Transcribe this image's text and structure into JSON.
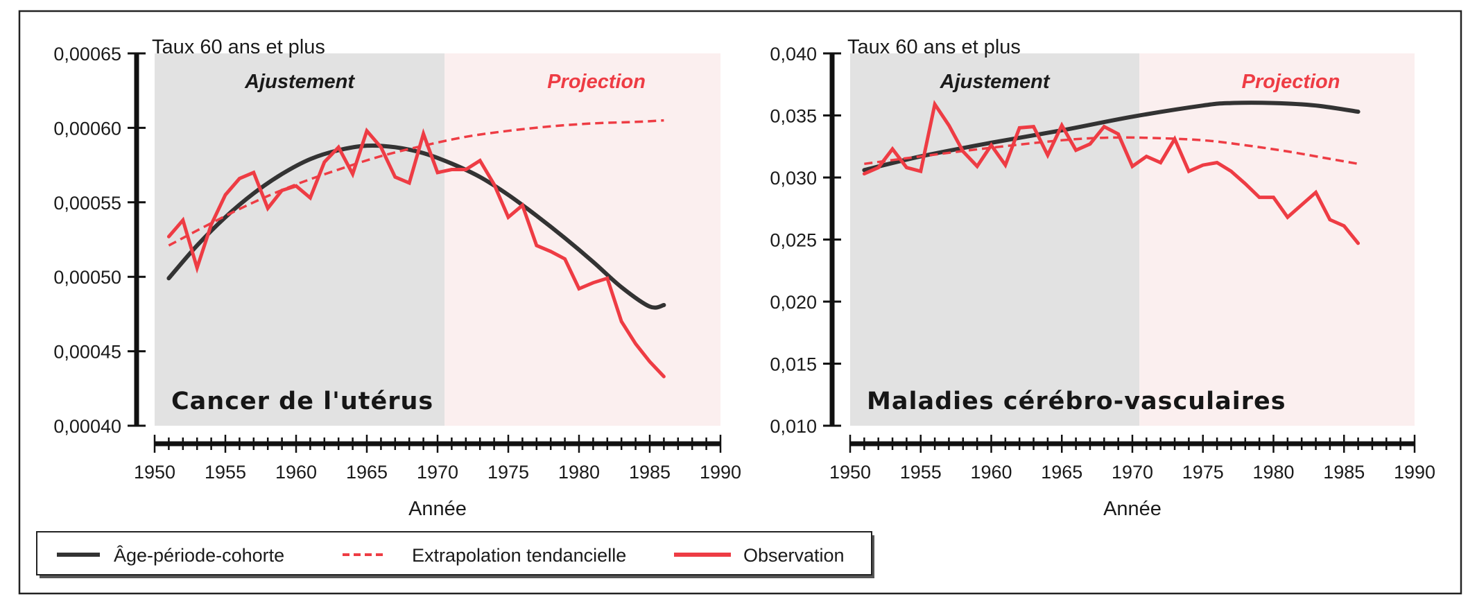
{
  "colors": {
    "apc": "#333333",
    "extrapolation": "#ee3c44",
    "observation": "#ee3c44",
    "fit_bg": "#e2e2e2",
    "proj_bg": "#fbefef",
    "projection_text": "#ee3c44",
    "fit_text": "#1a1a1a"
  },
  "legend": {
    "items": [
      {
        "label": "Âge-période-cohorte",
        "style": "solid-dark"
      },
      {
        "label": "Extrapolation tendancielle",
        "style": "dashed-red"
      },
      {
        "label": "Observation",
        "style": "solid-red"
      }
    ]
  },
  "chart_data": [
    {
      "type": "line",
      "title": "Cancer de l'utérus",
      "ylabel": "Taux 60 ans et plus",
      "xlabel": "Année",
      "xlim": [
        1950,
        1990
      ],
      "ylim": [
        0.0004,
        0.00065
      ],
      "x_ticks": [
        1950,
        1955,
        1960,
        1965,
        1970,
        1975,
        1980,
        1985,
        1990
      ],
      "x_tick_labels": [
        "1950",
        "1955",
        "1960",
        "1965",
        "1970",
        "1975",
        "1980",
        "1985",
        "1990"
      ],
      "y_ticks": [
        0.0004,
        0.00045,
        0.0005,
        0.00055,
        0.0006,
        0.00065
      ],
      "y_tick_labels": [
        "0,00040",
        "0,00045",
        "0,00050",
        "0,00055",
        "0,00060",
        "0,00065"
      ],
      "regions": [
        {
          "label": "Ajustement",
          "from": 1950,
          "to": 1970.5
        },
        {
          "label": "Projection",
          "from": 1970.5,
          "to": 1990
        }
      ],
      "series": [
        {
          "name": "Âge-période-cohorte",
          "x": [
            1951,
            1953,
            1955,
            1957,
            1959,
            1961,
            1963,
            1965,
            1967,
            1969,
            1971,
            1973,
            1975,
            1977,
            1979,
            1981,
            1983,
            1985,
            1986
          ],
          "values": [
            0.000499,
            0.000521,
            0.00054,
            0.000556,
            0.000569,
            0.000579,
            0.000585,
            0.000588,
            0.000587,
            0.000583,
            0.000576,
            0.000567,
            0.000555,
            0.000541,
            0.000526,
            0.00051,
            0.000493,
            0.00048,
            0.000481
          ]
        },
        {
          "name": "Extrapolation tendancielle",
          "x": [
            1951,
            1954,
            1957,
            1960,
            1963,
            1966,
            1969,
            1972,
            1975,
            1978,
            1981,
            1984,
            1986
          ],
          "values": [
            0.000521,
            0.000536,
            0.00055,
            0.000562,
            0.000572,
            0.000581,
            0.000588,
            0.000594,
            0.000598,
            0.000601,
            0.000603,
            0.000604,
            0.000605
          ]
        },
        {
          "name": "Observation",
          "x": [
            1951,
            1952,
            1953,
            1954,
            1955,
            1956,
            1957,
            1958,
            1959,
            1960,
            1961,
            1962,
            1963,
            1964,
            1965,
            1966,
            1967,
            1968,
            1969,
            1970,
            1971,
            1972,
            1973,
            1974,
            1975,
            1976,
            1977,
            1978,
            1979,
            1980,
            1981,
            1982,
            1983,
            1984,
            1985,
            1986
          ],
          "values": [
            0.000527,
            0.000538,
            0.000506,
            0.000535,
            0.000555,
            0.000566,
            0.00057,
            0.000546,
            0.000558,
            0.000561,
            0.000553,
            0.000577,
            0.000587,
            0.000569,
            0.000598,
            0.000587,
            0.000567,
            0.000563,
            0.000596,
            0.00057,
            0.000572,
            0.000572,
            0.000578,
            0.000562,
            0.00054,
            0.000548,
            0.000521,
            0.000517,
            0.000512,
            0.000492,
            0.000496,
            0.000499,
            0.00047,
            0.000455,
            0.000443,
            0.000433
          ]
        }
      ]
    },
    {
      "type": "line",
      "title": "Maladies cérébro-vasculaires",
      "ylabel": "Taux 60 ans et plus",
      "xlabel": "Année",
      "xlim": [
        1950,
        1990
      ],
      "ylim": [
        0.01,
        0.04
      ],
      "x_ticks": [
        1950,
        1955,
        1960,
        1965,
        1970,
        1975,
        1980,
        1985,
        1990
      ],
      "x_tick_labels": [
        "1950",
        "1955",
        "1960",
        "1965",
        "1970",
        "1975",
        "1980",
        "1985",
        "1990"
      ],
      "y_ticks": [
        0.01,
        0.015,
        0.02,
        0.025,
        0.03,
        0.035,
        0.04
      ],
      "y_tick_labels": [
        "0,010",
        "0,015",
        "0,020",
        "0,025",
        "0,030",
        "0,035",
        "0,040"
      ],
      "regions": [
        {
          "label": "Ajustement",
          "from": 1950,
          "to": 1970.5
        },
        {
          "label": "Projection",
          "from": 1970.5,
          "to": 1990
        }
      ],
      "series": [
        {
          "name": "Âge-période-cohorte",
          "x": [
            1951,
            1955,
            1960,
            1965,
            1970,
            1975,
            1977,
            1980,
            1983,
            1986
          ],
          "values": [
            0.0306,
            0.0317,
            0.0328,
            0.0338,
            0.0349,
            0.0358,
            0.036,
            0.036,
            0.0358,
            0.0353
          ]
        },
        {
          "name": "Extrapolation tendancielle",
          "x": [
            1951,
            1955,
            1960,
            1965,
            1968,
            1971,
            1975,
            1978,
            1981,
            1984,
            1986
          ],
          "values": [
            0.0311,
            0.0317,
            0.0324,
            0.033,
            0.0332,
            0.0332,
            0.033,
            0.0326,
            0.0321,
            0.0315,
            0.0311
          ]
        },
        {
          "name": "Observation",
          "x": [
            1951,
            1952,
            1953,
            1954,
            1955,
            1956,
            1957,
            1958,
            1959,
            1960,
            1961,
            1962,
            1963,
            1964,
            1965,
            1966,
            1967,
            1968,
            1969,
            1970,
            1971,
            1972,
            1973,
            1974,
            1975,
            1976,
            1977,
            1978,
            1979,
            1980,
            1981,
            1982,
            1983,
            1984,
            1985,
            1986
          ],
          "values": [
            0.0303,
            0.0308,
            0.0323,
            0.0308,
            0.0305,
            0.0359,
            0.0342,
            0.0321,
            0.0309,
            0.0326,
            0.031,
            0.034,
            0.0341,
            0.0318,
            0.0342,
            0.0322,
            0.0327,
            0.0341,
            0.0335,
            0.0309,
            0.0317,
            0.0312,
            0.0331,
            0.0305,
            0.031,
            0.0312,
            0.0305,
            0.0295,
            0.0284,
            0.0284,
            0.0268,
            0.0278,
            0.0288,
            0.0266,
            0.0261,
            0.0247
          ]
        }
      ]
    }
  ]
}
